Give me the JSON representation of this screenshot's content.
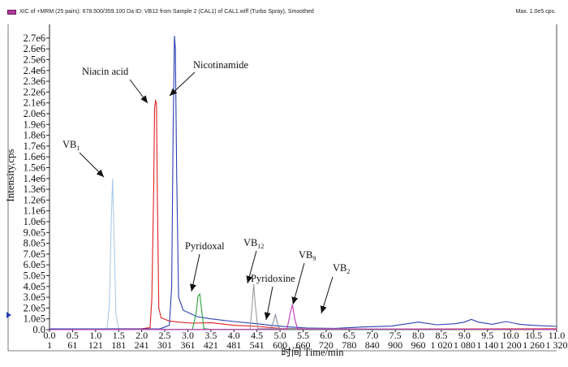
{
  "header": {
    "description": "XIC of +MRM (25 pairs): 678.500/359.100 Da ID: VB12 from Sample 2 (CAL1) of CAL1.wiff (Turbo Spray), Smoothed",
    "max_info": "Max. 1.0e5 cps."
  },
  "colors": {
    "frame": "#222222",
    "marker": "#b03a9a"
  },
  "chart_data": {
    "type": "line",
    "ylabel": "Intensity,cps",
    "xlabel": "时间  Time/min",
    "x_range": [
      0,
      11.0
    ],
    "y_range": [
      0,
      2750000.0
    ],
    "y_ticks": [
      "0.0",
      "1.0e5",
      "2.0e5",
      "3.0e5",
      "4.0e5",
      "5.0e5",
      "6.0e5",
      "7.0e5",
      "8.0e5",
      "9.0e5",
      "1.0e6",
      "1.1e6",
      "1.2e6",
      "1.3e6",
      "1.4e6",
      "1.5e6",
      "1.6e6",
      "1.7e6",
      "1.8e6",
      "1.9e6",
      "2.0e6",
      "2.1e6",
      "2.2e6",
      "2.3e6",
      "2.4e6",
      "2.5e6",
      "2.6e6",
      "2.7e6"
    ],
    "x_ticks_time": [
      "0.0",
      "0.5",
      "1.0",
      "1.5",
      "2.0",
      "2.5",
      "3.0",
      "3.5",
      "4.0",
      "4.5",
      "5.0",
      "5.5",
      "6.0",
      "6.5",
      "7.0",
      "7.5",
      "8.0",
      "8.5",
      "9.0",
      "9.5",
      "10.0",
      "10.5",
      "11.0"
    ],
    "x_ticks_scan": [
      "1",
      "61",
      "121",
      "181",
      "241",
      "301",
      "361",
      "421",
      "481",
      "541",
      "600",
      "660",
      "720",
      "780",
      "840",
      "900",
      "960",
      "1 020",
      "1 080",
      "1 140",
      "1 200",
      "1 260",
      "1 320"
    ],
    "series": [
      {
        "color": "#a9cbe8",
        "points": [
          [
            0,
            3000
          ],
          [
            1.25,
            5000
          ],
          [
            1.3,
            250000
          ],
          [
            1.34,
            1000000
          ],
          [
            1.37,
            1400000
          ],
          [
            1.4,
            900000
          ],
          [
            1.44,
            150000
          ],
          [
            1.5,
            6000
          ],
          [
            3,
            4000
          ],
          [
            11,
            4000
          ]
        ]
      },
      {
        "color": "#e02020",
        "points": [
          [
            0,
            4000
          ],
          [
            2.0,
            9000
          ],
          [
            2.18,
            18000
          ],
          [
            2.22,
            280000
          ],
          [
            2.26,
            1300000
          ],
          [
            2.28,
            2050000
          ],
          [
            2.3,
            2120000
          ],
          [
            2.32,
            2100000
          ],
          [
            2.34,
            1200000
          ],
          [
            2.37,
            200000
          ],
          [
            2.42,
            110000
          ],
          [
            2.6,
            80000
          ],
          [
            2.8,
            70000
          ],
          [
            3.1,
            60000
          ],
          [
            3.5,
            65000
          ],
          [
            4.0,
            40000
          ],
          [
            4.5,
            30000
          ],
          [
            5.0,
            12000
          ],
          [
            5.5,
            9000
          ],
          [
            6.0,
            6000
          ],
          [
            8,
            7000
          ],
          [
            11,
            8000
          ]
        ]
      },
      {
        "color": "#2a3fb3",
        "points": [
          [
            0,
            7000
          ],
          [
            2.4,
            8000
          ],
          [
            2.6,
            40000
          ],
          [
            2.65,
            400000
          ],
          [
            2.68,
            1800000
          ],
          [
            2.71,
            2720000
          ],
          [
            2.73,
            2600000
          ],
          [
            2.76,
            1400000
          ],
          [
            2.8,
            300000
          ],
          [
            2.9,
            180000
          ],
          [
            3.2,
            120000
          ],
          [
            3.5,
            100000
          ],
          [
            4.0,
            75000
          ],
          [
            4.5,
            55000
          ],
          [
            4.8,
            40000
          ],
          [
            5.2,
            25000
          ],
          [
            5.6,
            15000
          ],
          [
            6.2,
            12000
          ],
          [
            6.8,
            25000
          ],
          [
            7.4,
            32000
          ],
          [
            8.0,
            70000
          ],
          [
            8.4,
            45000
          ],
          [
            8.8,
            55000
          ],
          [
            9.0,
            70000
          ],
          [
            9.15,
            95000
          ],
          [
            9.3,
            70000
          ],
          [
            9.6,
            50000
          ],
          [
            9.9,
            75000
          ],
          [
            10.2,
            50000
          ],
          [
            10.5,
            40000
          ],
          [
            11,
            30000
          ]
        ]
      },
      {
        "color": "#2aa039",
        "points": [
          [
            0,
            0
          ],
          [
            3.1,
            2000
          ],
          [
            3.18,
            150000
          ],
          [
            3.22,
            310000
          ],
          [
            3.26,
            330000
          ],
          [
            3.3,
            180000
          ],
          [
            3.35,
            10000
          ],
          [
            3.5,
            2000
          ],
          [
            11,
            2000
          ]
        ]
      },
      {
        "color": "#9a9a9a",
        "points": [
          [
            0,
            0
          ],
          [
            4.35,
            3000
          ],
          [
            4.4,
            250000
          ],
          [
            4.43,
            420000
          ],
          [
            4.46,
            250000
          ],
          [
            4.52,
            10000
          ],
          [
            11,
            3000
          ]
        ]
      },
      {
        "color": "#8a8a9e",
        "points": [
          [
            0,
            0
          ],
          [
            4.8,
            2000
          ],
          [
            4.86,
            80000
          ],
          [
            4.9,
            140000
          ],
          [
            4.95,
            50000
          ],
          [
            5.0,
            3000
          ],
          [
            11,
            3000
          ]
        ]
      },
      {
        "color": "#c038b8",
        "points": [
          [
            0,
            0
          ],
          [
            5.15,
            2000
          ],
          [
            5.22,
            150000
          ],
          [
            5.27,
            230000
          ],
          [
            5.32,
            100000
          ],
          [
            5.38,
            5000
          ],
          [
            11,
            2000
          ]
        ]
      }
    ],
    "annotations": [
      "VB1",
      "Niacin acid",
      "Nicotinamide",
      "Pyridoxal",
      "VB12",
      "Pyridoxine",
      "VB9",
      "VB2"
    ]
  }
}
